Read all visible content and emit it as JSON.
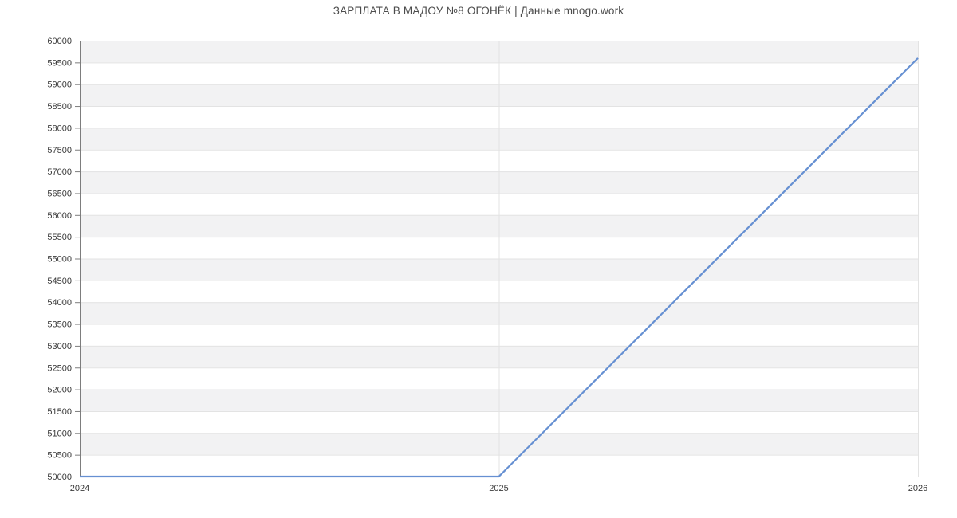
{
  "header": {
    "title": "ЗАРПЛАТА В МАДОУ №8 ОГОНЁК | Данные mnogo.work"
  },
  "chart_data": {
    "type": "line",
    "title": "ЗАРПЛАТА В МАДОУ №8 ОГОНЁК | Данные mnogo.work",
    "x": [
      2024,
      2025,
      2026
    ],
    "values": [
      50000,
      50000,
      59600
    ],
    "x_tick_labels": [
      "2024",
      "2025",
      "2026"
    ],
    "y_ticks": [
      50000,
      50500,
      51000,
      51500,
      52000,
      52500,
      53000,
      53500,
      54000,
      54500,
      55000,
      55500,
      56000,
      56500,
      57000,
      57500,
      58000,
      58500,
      59000,
      59500,
      60000
    ],
    "xlim": [
      2024,
      2026
    ],
    "ylim": [
      50000,
      60000
    ],
    "xlabel": "",
    "ylabel": "",
    "grid": true,
    "legend": "none",
    "band_fill": "alternating horizontal stripes, gray band at top",
    "colors": {
      "line": "#6690d2",
      "band": "#f2f2f3",
      "gridline": "#e3e3e3",
      "axis": "#7d7d7d",
      "tick_label": "#3a3a3a",
      "title": "#4c4c4c",
      "background": "#ffffff"
    }
  }
}
